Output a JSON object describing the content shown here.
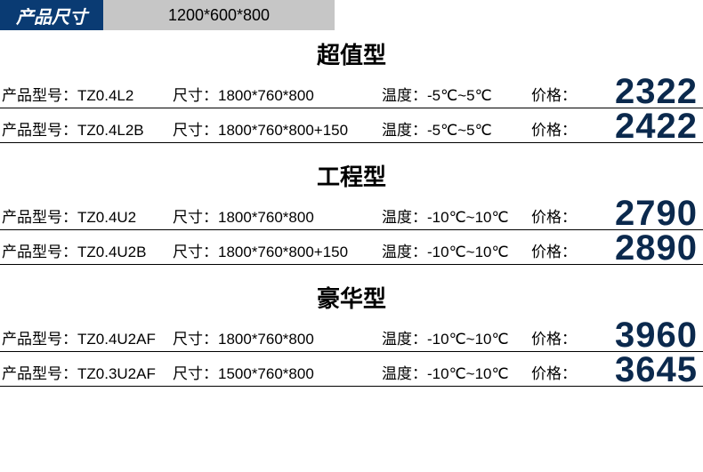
{
  "header": {
    "label": "产品尺寸",
    "value": "1200*600*800"
  },
  "field_labels": {
    "model": "产品型号：",
    "size": "尺寸：",
    "temp": "温度：",
    "price": "价格："
  },
  "colors": {
    "header_bg": "#0a3b73",
    "header_text": "#ffffff",
    "header_value_bg": "#c6c6c6",
    "price_color": "#0b294d",
    "text_color": "#000000",
    "border_color": "#000000",
    "background": "#ffffff"
  },
  "typography": {
    "section_title_fontsize": 26,
    "cell_fontsize": 17,
    "price_fontsize": 40,
    "header_label_fontsize": 20,
    "header_value_fontsize": 18
  },
  "sections": [
    {
      "title": "超值型",
      "rows": [
        {
          "model": "TZ0.4L2",
          "size": "1800*760*800",
          "temp": "-5℃~5℃",
          "price": "2322"
        },
        {
          "model": "TZ0.4L2B",
          "size": "1800*760*800+150",
          "temp": "-5℃~5℃",
          "price": "2422"
        }
      ]
    },
    {
      "title": "工程型",
      "rows": [
        {
          "model": "TZ0.4U2",
          "size": "1800*760*800",
          "temp": "-10℃~10℃",
          "price": "2790"
        },
        {
          "model": "TZ0.4U2B",
          "size": "1800*760*800+150",
          "temp": "-10℃~10℃",
          "price": "2890"
        }
      ]
    },
    {
      "title": "豪华型",
      "rows": [
        {
          "model": "TZ0.4U2AF",
          "size": "1800*760*800",
          "temp": "-10℃~10℃",
          "price": "3960"
        },
        {
          "model": "TZ0.3U2AF",
          "size": "1500*760*800",
          "temp": "-10℃~10℃",
          "price": "3645"
        }
      ]
    }
  ]
}
